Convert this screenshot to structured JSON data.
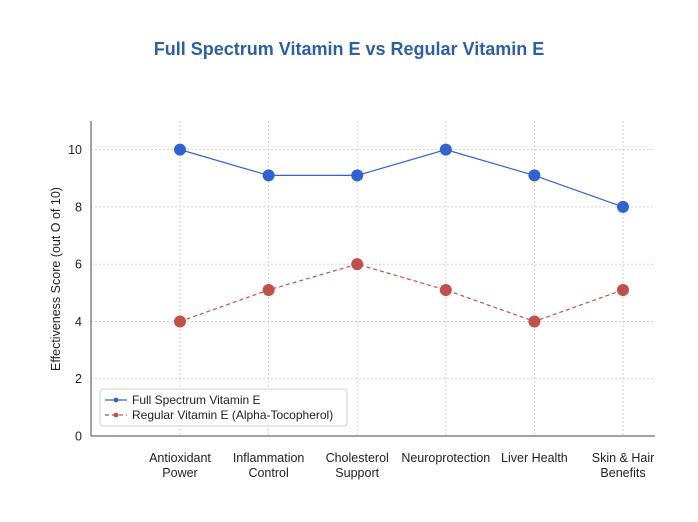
{
  "chart_data": {
    "type": "line",
    "title": "Full Spectrum Vitamin E vs Regular Vitamin E",
    "xlabel": "",
    "ylabel": "Effectiveness Score (out O of 10)",
    "categories": [
      [
        "Antioxidant",
        "Power"
      ],
      [
        "Inflammation",
        "Control"
      ],
      [
        "Cholesterol",
        "Support"
      ],
      [
        "Neuroprotection"
      ],
      [
        "Liver Health"
      ],
      [
        "Skin & Hair",
        "Benefits"
      ]
    ],
    "yticks": [
      "0",
      "2",
      "4",
      "6",
      "8",
      "10"
    ],
    "ylim": [
      0,
      11
    ],
    "grid": true,
    "legend_position": "lower-left",
    "series": [
      {
        "name": "Full Spectrum Vitamin E",
        "values": [
          10,
          9.1,
          9.1,
          10,
          9.1,
          8
        ],
        "color": "#3063d0",
        "line_style": "solid"
      },
      {
        "name": "Regular Vitamin E (Alpha-Tocopherol)",
        "values": [
          4,
          5.1,
          6,
          5.1,
          4,
          5.1
        ],
        "color": "#c0504d",
        "line_style": "dashed"
      }
    ],
    "title_color": "#2e5fa3"
  }
}
